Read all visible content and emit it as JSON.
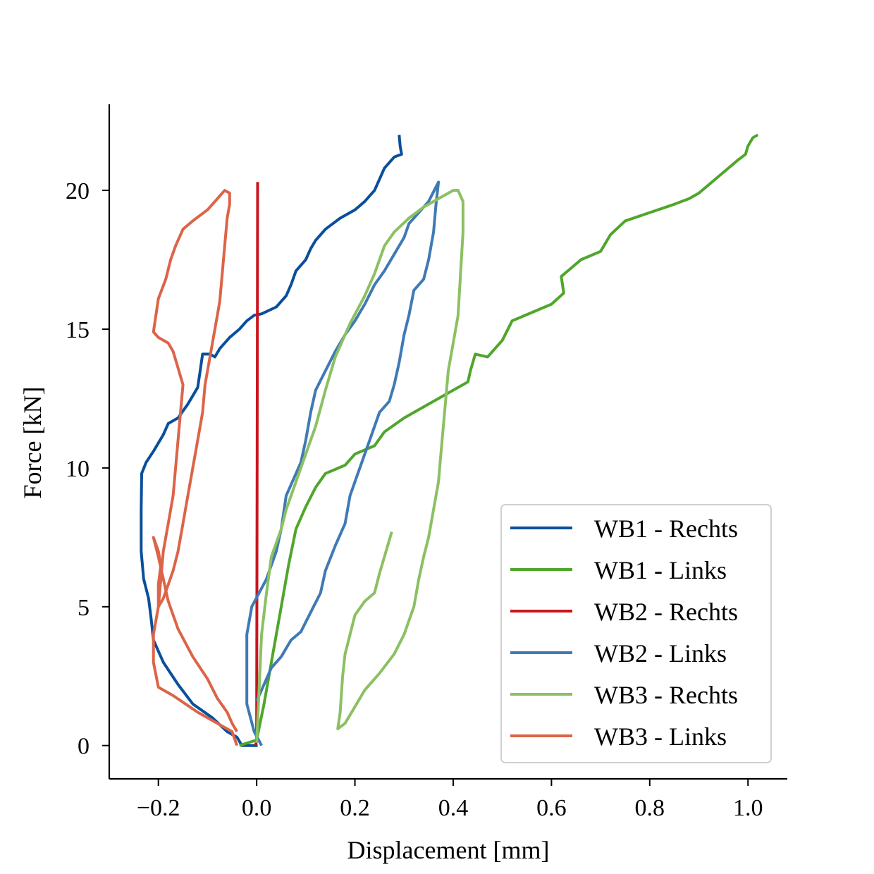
{
  "chart_data": {
    "type": "line",
    "title": "",
    "xlabel": "Displacement [mm]",
    "ylabel": "Force [kN]",
    "xlim": [
      -0.3,
      1.08
    ],
    "ylim": [
      -1.2,
      23.1
    ],
    "xticks": [
      -0.2,
      0.0,
      0.2,
      0.4,
      0.6,
      0.8,
      1.0
    ],
    "xtick_labels": [
      "−0.2",
      "0.0",
      "0.2",
      "0.4",
      "0.6",
      "0.8",
      "1.0"
    ],
    "yticks": [
      0,
      5,
      10,
      15,
      20
    ],
    "ytick_labels": [
      "0",
      "5",
      "10",
      "15",
      "20"
    ],
    "grid": false,
    "legend_position": "bottom-right",
    "series": [
      {
        "name": "WB1 - Rechts",
        "color": "#0a4f9b",
        "points": [
          [
            0.002,
            0
          ],
          [
            -0.03,
            0
          ],
          [
            -0.04,
            0.3
          ],
          [
            -0.06,
            0.5
          ],
          [
            -0.09,
            1.0
          ],
          [
            -0.13,
            1.5
          ],
          [
            -0.16,
            2.2
          ],
          [
            -0.19,
            3.0
          ],
          [
            -0.21,
            3.8
          ],
          [
            -0.215,
            4.6
          ],
          [
            -0.22,
            5.3
          ],
          [
            -0.23,
            6.0
          ],
          [
            -0.235,
            7.0
          ],
          [
            -0.235,
            8.5
          ],
          [
            -0.234,
            9.8
          ],
          [
            -0.225,
            10.2
          ],
          [
            -0.21,
            10.6
          ],
          [
            -0.19,
            11.2
          ],
          [
            -0.18,
            11.6
          ],
          [
            -0.16,
            11.8
          ],
          [
            -0.14,
            12.3
          ],
          [
            -0.12,
            12.9
          ],
          [
            -0.115,
            13.5
          ],
          [
            -0.11,
            14.1
          ],
          [
            -0.095,
            14.1
          ],
          [
            -0.085,
            14.0
          ],
          [
            -0.075,
            14.3
          ],
          [
            -0.055,
            14.7
          ],
          [
            -0.035,
            15.0
          ],
          [
            -0.02,
            15.3
          ],
          [
            -0.005,
            15.5
          ],
          [
            0.01,
            15.55
          ],
          [
            0.04,
            15.8
          ],
          [
            0.06,
            16.2
          ],
          [
            0.07,
            16.6
          ],
          [
            0.08,
            17.1
          ],
          [
            0.1,
            17.5
          ],
          [
            0.11,
            17.9
          ],
          [
            0.12,
            18.2
          ],
          [
            0.14,
            18.6
          ],
          [
            0.17,
            19.0
          ],
          [
            0.2,
            19.3
          ],
          [
            0.22,
            19.6
          ],
          [
            0.24,
            20.0
          ],
          [
            0.25,
            20.4
          ],
          [
            0.26,
            20.8
          ],
          [
            0.28,
            21.2
          ],
          [
            0.295,
            21.3
          ],
          [
            0.292,
            21.6
          ],
          [
            0.29,
            22.0
          ]
        ]
      },
      {
        "name": "WB1 - Links",
        "color": "#4fa62b",
        "points": [
          [
            -0.035,
            0
          ],
          [
            0.0,
            0.2
          ],
          [
            0.015,
            1.5
          ],
          [
            0.03,
            3.0
          ],
          [
            0.05,
            5.0
          ],
          [
            0.065,
            6.5
          ],
          [
            0.08,
            7.8
          ],
          [
            0.1,
            8.6
          ],
          [
            0.12,
            9.3
          ],
          [
            0.14,
            9.8
          ],
          [
            0.18,
            10.1
          ],
          [
            0.2,
            10.5
          ],
          [
            0.24,
            10.8
          ],
          [
            0.26,
            11.3
          ],
          [
            0.3,
            11.8
          ],
          [
            0.34,
            12.2
          ],
          [
            0.38,
            12.6
          ],
          [
            0.42,
            13.0
          ],
          [
            0.43,
            13.1
          ],
          [
            0.435,
            13.5
          ],
          [
            0.445,
            14.1
          ],
          [
            0.47,
            14.0
          ],
          [
            0.5,
            14.6
          ],
          [
            0.52,
            15.3
          ],
          [
            0.56,
            15.6
          ],
          [
            0.6,
            15.9
          ],
          [
            0.625,
            16.3
          ],
          [
            0.62,
            16.9
          ],
          [
            0.64,
            17.2
          ],
          [
            0.66,
            17.5
          ],
          [
            0.7,
            17.8
          ],
          [
            0.72,
            18.4
          ],
          [
            0.75,
            18.9
          ],
          [
            0.8,
            19.2
          ],
          [
            0.85,
            19.5
          ],
          [
            0.88,
            19.7
          ],
          [
            0.9,
            19.9
          ],
          [
            0.92,
            20.2
          ],
          [
            0.94,
            20.5
          ],
          [
            0.96,
            20.8
          ],
          [
            0.98,
            21.1
          ],
          [
            0.995,
            21.3
          ],
          [
            1.0,
            21.6
          ],
          [
            1.01,
            21.9
          ],
          [
            1.02,
            22.0
          ]
        ]
      },
      {
        "name": "WB2 - Rechts",
        "color": "#c9151f",
        "points": [
          [
            -0.002,
            0
          ],
          [
            0.0,
            0.2
          ],
          [
            0.001,
            10.0
          ],
          [
            0.002,
            20.3
          ]
        ]
      },
      {
        "name": "WB2 - Links",
        "color": "#3f7ab5",
        "points": [
          [
            0.01,
            0
          ],
          [
            -0.005,
            0.5
          ],
          [
            -0.02,
            1.5
          ],
          [
            -0.02,
            4.0
          ],
          [
            -0.01,
            5.0
          ],
          [
            0.02,
            6.0
          ],
          [
            0.04,
            7.0
          ],
          [
            0.05,
            7.8
          ],
          [
            0.06,
            9.0
          ],
          [
            0.09,
            10.2
          ],
          [
            0.1,
            11.0
          ],
          [
            0.11,
            12.0
          ],
          [
            0.12,
            12.8
          ],
          [
            0.14,
            13.5
          ],
          [
            0.16,
            14.2
          ],
          [
            0.18,
            14.8
          ],
          [
            0.2,
            15.3
          ],
          [
            0.22,
            15.9
          ],
          [
            0.24,
            16.6
          ],
          [
            0.26,
            17.1
          ],
          [
            0.28,
            17.7
          ],
          [
            0.3,
            18.3
          ],
          [
            0.31,
            18.8
          ],
          [
            0.33,
            19.2
          ],
          [
            0.35,
            19.6
          ],
          [
            0.37,
            20.3
          ],
          [
            0.365,
            19.5
          ],
          [
            0.36,
            18.5
          ],
          [
            0.35,
            17.5
          ],
          [
            0.34,
            16.8
          ],
          [
            0.32,
            16.4
          ],
          [
            0.31,
            15.5
          ],
          [
            0.3,
            14.8
          ],
          [
            0.29,
            13.8
          ],
          [
            0.28,
            13.0
          ],
          [
            0.27,
            12.4
          ],
          [
            0.25,
            12.0
          ],
          [
            0.23,
            11.0
          ],
          [
            0.21,
            10.0
          ],
          [
            0.19,
            9.0
          ],
          [
            0.18,
            8.0
          ],
          [
            0.16,
            7.2
          ],
          [
            0.14,
            6.3
          ],
          [
            0.13,
            5.5
          ],
          [
            0.11,
            4.8
          ],
          [
            0.09,
            4.1
          ],
          [
            0.07,
            3.8
          ],
          [
            0.05,
            3.2
          ],
          [
            0.03,
            2.8
          ],
          [
            0.01,
            2.0
          ],
          [
            0.0,
            1.6
          ]
        ]
      },
      {
        "name": "WB3 - Rechts",
        "color": "#8cc063",
        "points": [
          [
            0.0,
            0.1
          ],
          [
            0.005,
            2.0
          ],
          [
            0.01,
            4.0
          ],
          [
            0.02,
            5.5
          ],
          [
            0.03,
            6.8
          ],
          [
            0.05,
            7.8
          ],
          [
            0.06,
            8.5
          ],
          [
            0.08,
            9.5
          ],
          [
            0.1,
            10.5
          ],
          [
            0.12,
            11.5
          ],
          [
            0.14,
            12.8
          ],
          [
            0.16,
            14.0
          ],
          [
            0.19,
            15.2
          ],
          [
            0.22,
            16.2
          ],
          [
            0.24,
            17.0
          ],
          [
            0.26,
            18.0
          ],
          [
            0.28,
            18.5
          ],
          [
            0.31,
            19.0
          ],
          [
            0.34,
            19.4
          ],
          [
            0.37,
            19.7
          ],
          [
            0.4,
            20.0
          ],
          [
            0.41,
            20.0
          ],
          [
            0.42,
            19.6
          ],
          [
            0.42,
            18.5
          ],
          [
            0.415,
            17.0
          ],
          [
            0.41,
            15.5
          ],
          [
            0.4,
            14.5
          ],
          [
            0.39,
            13.5
          ],
          [
            0.385,
            12.5
          ],
          [
            0.38,
            11.5
          ],
          [
            0.375,
            10.5
          ],
          [
            0.37,
            9.5
          ],
          [
            0.36,
            8.5
          ],
          [
            0.35,
            7.5
          ],
          [
            0.34,
            6.8
          ],
          [
            0.33,
            6.0
          ],
          [
            0.32,
            5.0
          ],
          [
            0.3,
            4.0
          ],
          [
            0.28,
            3.3
          ],
          [
            0.25,
            2.6
          ],
          [
            0.22,
            2.0
          ],
          [
            0.2,
            1.4
          ],
          [
            0.18,
            0.8
          ],
          [
            0.165,
            0.6
          ],
          [
            0.17,
            1.2
          ],
          [
            0.175,
            2.5
          ],
          [
            0.18,
            3.3
          ],
          [
            0.19,
            4.0
          ],
          [
            0.2,
            4.7
          ],
          [
            0.22,
            5.2
          ],
          [
            0.24,
            5.5
          ],
          [
            0.25,
            6.2
          ],
          [
            0.26,
            6.8
          ],
          [
            0.275,
            7.7
          ]
        ]
      },
      {
        "name": "WB3 - Links",
        "color": "#dc6448",
        "points": [
          [
            -0.04,
            0
          ],
          [
            -0.05,
            0.5
          ],
          [
            -0.08,
            0.8
          ],
          [
            -0.12,
            1.2
          ],
          [
            -0.17,
            1.8
          ],
          [
            -0.2,
            2.1
          ],
          [
            -0.21,
            3.0
          ],
          [
            -0.21,
            4.0
          ],
          [
            -0.2,
            5.0
          ],
          [
            -0.195,
            6.0
          ],
          [
            -0.19,
            7.0
          ],
          [
            -0.18,
            8.0
          ],
          [
            -0.17,
            9.0
          ],
          [
            -0.165,
            10.0
          ],
          [
            -0.16,
            11.0
          ],
          [
            -0.155,
            12.0
          ],
          [
            -0.15,
            13.0
          ],
          [
            -0.16,
            13.6
          ],
          [
            -0.17,
            14.2
          ],
          [
            -0.18,
            14.5
          ],
          [
            -0.2,
            14.7
          ],
          [
            -0.21,
            14.9
          ],
          [
            -0.205,
            15.5
          ],
          [
            -0.2,
            16.1
          ],
          [
            -0.185,
            16.8
          ],
          [
            -0.175,
            17.5
          ],
          [
            -0.165,
            18.0
          ],
          [
            -0.15,
            18.6
          ],
          [
            -0.13,
            18.9
          ],
          [
            -0.1,
            19.3
          ],
          [
            -0.08,
            19.7
          ],
          [
            -0.065,
            20.0
          ],
          [
            -0.055,
            19.9
          ],
          [
            -0.055,
            19.5
          ],
          [
            -0.06,
            19.0
          ],
          [
            -0.065,
            18.0
          ],
          [
            -0.07,
            17.0
          ],
          [
            -0.075,
            16.0
          ],
          [
            -0.085,
            15.0
          ],
          [
            -0.095,
            14.0
          ],
          [
            -0.105,
            13.0
          ],
          [
            -0.11,
            12.0
          ],
          [
            -0.12,
            11.0
          ],
          [
            -0.13,
            10.0
          ],
          [
            -0.14,
            9.0
          ],
          [
            -0.15,
            8.0
          ],
          [
            -0.16,
            7.0
          ],
          [
            -0.17,
            6.3
          ],
          [
            -0.18,
            5.8
          ],
          [
            -0.19,
            5.3
          ],
          [
            -0.2,
            5.0
          ],
          [
            -0.2,
            5.8
          ],
          [
            -0.195,
            6.5
          ],
          [
            -0.2,
            7.0
          ],
          [
            -0.21,
            7.5
          ],
          [
            -0.2,
            6.8
          ],
          [
            -0.19,
            6.0
          ],
          [
            -0.18,
            5.2
          ],
          [
            -0.16,
            4.2
          ],
          [
            -0.13,
            3.2
          ],
          [
            -0.1,
            2.4
          ],
          [
            -0.08,
            1.7
          ],
          [
            -0.06,
            1.2
          ],
          [
            -0.05,
            0.8
          ],
          [
            -0.04,
            0.5
          ]
        ]
      }
    ]
  }
}
